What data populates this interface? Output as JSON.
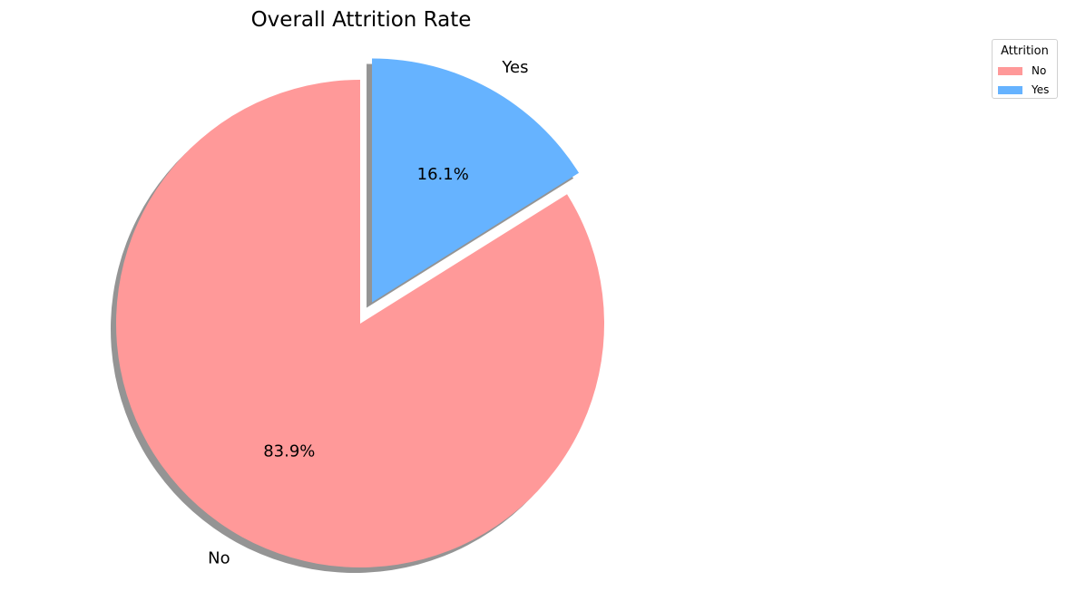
{
  "chart_data": {
    "type": "pie",
    "title": "Overall Attrition Rate",
    "labels": [
      "No",
      "Yes"
    ],
    "values": [
      83.9,
      16.1
    ],
    "percent_labels": [
      "83.9%",
      "16.1%"
    ],
    "colors": [
      "#ff9999",
      "#66b3ff"
    ],
    "explode": [
      0,
      0.1
    ],
    "start_angle_deg": 90,
    "direction": "counterclockwise",
    "shadow": true,
    "legend": {
      "title": "Attrition",
      "entries": [
        "No",
        "Yes"
      ],
      "placement": "top-right"
    }
  }
}
